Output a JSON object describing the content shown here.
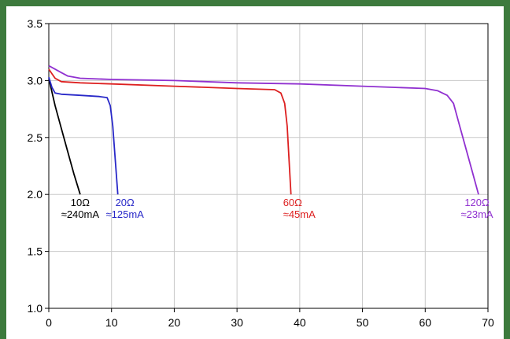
{
  "chart_data": {
    "type": "line",
    "title": "",
    "xlabel": "",
    "ylabel": "",
    "xlim": [
      0,
      70
    ],
    "ylim": [
      1.0,
      3.5
    ],
    "x_ticks": [
      0,
      10,
      20,
      30,
      40,
      50,
      60,
      70
    ],
    "y_ticks": [
      1.0,
      1.5,
      2.0,
      2.5,
      3.0,
      3.5
    ],
    "x_tick_labels": [
      "0",
      "10",
      "20",
      "30",
      "40",
      "50",
      "60",
      "70"
    ],
    "y_tick_labels": [
      "1.0",
      "1.5",
      "2.0",
      "2.5",
      "3.0",
      "3.5"
    ],
    "grid": true,
    "background": "#ffffff",
    "frame_color": "#3d7a3d",
    "series": [
      {
        "label_lines": [
          "10Ω",
          "≈240mA"
        ],
        "color": "#000000",
        "points": [
          [
            0,
            3.02
          ],
          [
            0.5,
            2.9
          ],
          [
            1.0,
            2.78
          ],
          [
            2.0,
            2.58
          ],
          [
            3.0,
            2.38
          ],
          [
            4.0,
            2.18
          ],
          [
            5.0,
            2.0
          ]
        ]
      },
      {
        "label_lines": [
          "20Ω",
          "≈125mA"
        ],
        "color": "#2828c8",
        "points": [
          [
            0,
            3.03
          ],
          [
            0.5,
            2.94
          ],
          [
            1.0,
            2.89
          ],
          [
            2.0,
            2.88
          ],
          [
            5.0,
            2.87
          ],
          [
            8.0,
            2.86
          ],
          [
            9.3,
            2.85
          ],
          [
            9.8,
            2.78
          ],
          [
            10.2,
            2.6
          ],
          [
            10.6,
            2.3
          ],
          [
            11.0,
            2.0
          ]
        ]
      },
      {
        "label_lines": [
          "60Ω",
          "≈45mA"
        ],
        "color": "#dd2020",
        "points": [
          [
            0,
            3.1
          ],
          [
            0.5,
            3.06
          ],
          [
            1.0,
            3.02
          ],
          [
            2.0,
            2.99
          ],
          [
            5.0,
            2.98
          ],
          [
            10.0,
            2.97
          ],
          [
            20.0,
            2.95
          ],
          [
            30.0,
            2.93
          ],
          [
            36.0,
            2.92
          ],
          [
            37.0,
            2.89
          ],
          [
            37.6,
            2.8
          ],
          [
            38.0,
            2.6
          ],
          [
            38.3,
            2.3
          ],
          [
            38.6,
            2.0
          ]
        ]
      },
      {
        "label_lines": [
          "120Ω",
          "≈23mA"
        ],
        "color": "#9030d0",
        "points": [
          [
            0,
            3.13
          ],
          [
            1.0,
            3.1
          ],
          [
            2.0,
            3.07
          ],
          [
            3.0,
            3.04
          ],
          [
            5.0,
            3.02
          ],
          [
            10.0,
            3.01
          ],
          [
            20.0,
            3.0
          ],
          [
            30.0,
            2.98
          ],
          [
            40.0,
            2.97
          ],
          [
            50.0,
            2.95
          ],
          [
            60.0,
            2.93
          ],
          [
            62.0,
            2.91
          ],
          [
            63.5,
            2.87
          ],
          [
            64.5,
            2.8
          ],
          [
            65.5,
            2.6
          ],
          [
            66.5,
            2.4
          ],
          [
            67.5,
            2.2
          ],
          [
            68.5,
            2.0
          ]
        ]
      }
    ]
  }
}
